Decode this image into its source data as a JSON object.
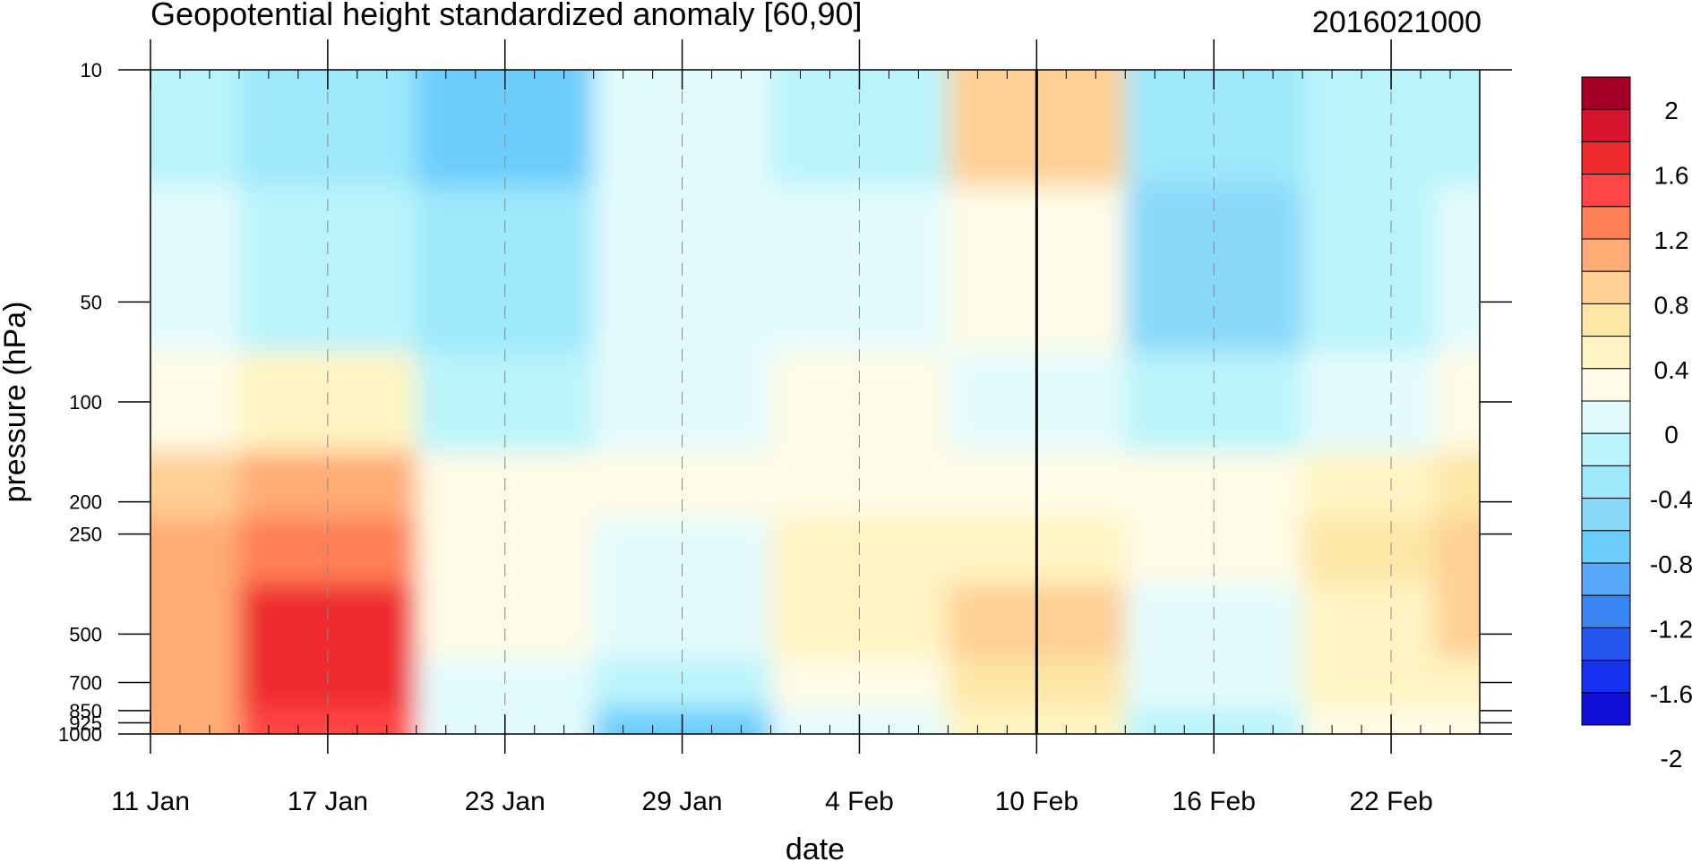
{
  "chart_data": {
    "type": "heatmap",
    "title": "Geopotential height standardized anomaly [60,90]",
    "subtitle": "2016021000",
    "xlabel": "date",
    "ylabel": "pressure (hPa)",
    "x_ticks": [
      "11 Jan",
      "17 Jan",
      "23 Jan",
      "29 Jan",
      "4 Feb",
      "10 Feb",
      "16 Feb",
      "22 Feb"
    ],
    "x_range": [
      "2016-01-11",
      "2016-02-25"
    ],
    "y_ticks": [
      10,
      50,
      100,
      200,
      250,
      500,
      700,
      850,
      925,
      1000
    ],
    "y_scale": "log",
    "y_range": [
      10,
      1000
    ],
    "reference_date": "10 Feb",
    "colorbar": {
      "labels": [
        "2",
        "1.6",
        "1.2",
        "0.8",
        "0.4",
        "0",
        "-0.4",
        "-0.8",
        "-1.2",
        "-1.6",
        "-2"
      ],
      "colors": [
        "#a50026",
        "#d7142e",
        "#ee2a2e",
        "#ff4545",
        "#ff7f55",
        "#ffab75",
        "#ffcf94",
        "#fde6a6",
        "#fff4c2",
        "#fffbe6",
        "#e3fbfd",
        "#baf4fb",
        "#9de8fb",
        "#88d8fa",
        "#6ccdfb",
        "#5aa8f9",
        "#3b84f4",
        "#2357f0",
        "#1531f0",
        "#1010d6"
      ]
    },
    "anomaly_grid": {
      "dates": [
        "2016-01-11",
        "2016-01-17",
        "2016-01-23",
        "2016-01-29",
        "2016-02-04",
        "2016-02-10",
        "2016-02-16",
        "2016-02-22",
        "2016-02-25"
      ],
      "pressures": [
        10,
        50,
        100,
        200,
        250,
        500,
        700,
        1000
      ],
      "values": [
        [
          -0.3,
          -0.55,
          -0.9,
          -0.1,
          -0.4,
          0.7,
          -0.5,
          -0.3,
          -0.2
        ],
        [
          -0.1,
          -0.35,
          -0.5,
          -0.1,
          -0.1,
          0.1,
          -0.6,
          -0.4,
          -0.1
        ],
        [
          0.1,
          0.3,
          -0.2,
          -0.1,
          0.1,
          -0.1,
          -0.3,
          -0.1,
          0.1
        ],
        [
          0.6,
          0.8,
          0.1,
          0.1,
          0.2,
          0.1,
          0.05,
          0.3,
          0.5
        ],
        [
          0.8,
          1.1,
          0.2,
          0.0,
          0.3,
          0.4,
          0.05,
          0.5,
          0.7
        ],
        [
          1.0,
          1.5,
          0.1,
          -0.1,
          0.4,
          0.6,
          0.0,
          0.4,
          0.6
        ],
        [
          0.9,
          1.5,
          0.0,
          -0.4,
          0.2,
          0.5,
          -0.1,
          0.3,
          0.4
        ],
        [
          0.8,
          1.4,
          -0.1,
          -0.9,
          0.0,
          0.3,
          -0.2,
          0.1,
          0.2
        ]
      ]
    }
  }
}
